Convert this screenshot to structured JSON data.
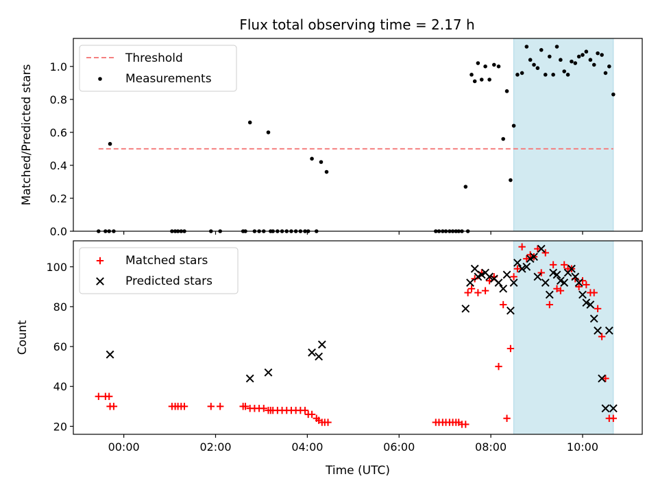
{
  "title": "Flux total observing time = 2.17 h",
  "colors": {
    "threshold": "#f47f7f",
    "measurement": "#000000",
    "matched": "#ff0000",
    "predicted": "#000000",
    "highlight": "#add8e6"
  },
  "chart_data": [
    {
      "type": "scatter",
      "id": "ratio",
      "ylabel": "Matched/Predicted stars",
      "xlim": [
        -1.1,
        11.3
      ],
      "ylim": [
        0,
        1.17
      ],
      "yticks": [
        0.0,
        0.2,
        0.4,
        0.6,
        0.8,
        1.0
      ],
      "ytick_labels": [
        "0.0",
        "0.2",
        "0.4",
        "0.6",
        "0.8",
        "1.0"
      ],
      "highlight_span": [
        8.5,
        10.67
      ],
      "threshold": {
        "label": "Threshold",
        "value": 0.5,
        "x_range": [
          -0.55,
          10.67
        ]
      },
      "measurements": {
        "label": "Measurements",
        "x": [
          -0.55,
          -0.4,
          -0.32,
          -0.22,
          -0.3,
          1.05,
          1.12,
          1.18,
          1.25,
          1.32,
          1.9,
          2.1,
          2.6,
          2.65,
          2.75,
          2.85,
          2.95,
          3.05,
          3.15,
          3.2,
          3.25,
          3.35,
          3.45,
          3.55,
          3.65,
          3.75,
          3.85,
          3.95,
          4.02,
          4.1,
          4.2,
          4.3,
          4.42,
          6.8,
          6.87,
          6.95,
          7.02,
          7.1,
          7.17,
          7.24,
          7.3,
          7.37,
          7.45,
          7.5,
          7.58,
          7.65,
          7.72,
          7.8,
          7.88,
          7.97,
          8.07,
          8.17,
          8.27,
          8.35,
          8.43,
          8.5,
          8.58,
          8.68,
          8.78,
          8.86,
          8.94,
          9.02,
          9.1,
          9.19,
          9.28,
          9.36,
          9.44,
          9.52,
          9.6,
          9.68,
          9.76,
          9.84,
          9.92,
          10.0,
          10.08,
          10.17,
          10.25,
          10.33,
          10.42,
          10.5,
          10.58,
          10.67
        ],
        "y": [
          0.0,
          0.0,
          0.0,
          0.0,
          0.53,
          0.0,
          0.0,
          0.0,
          0.0,
          0.0,
          0.0,
          0.0,
          0.0,
          0.0,
          0.66,
          0.0,
          0.0,
          0.0,
          0.6,
          0.0,
          0.0,
          0.0,
          0.0,
          0.0,
          0.0,
          0.0,
          0.0,
          0.0,
          0.0,
          0.44,
          0.0,
          0.42,
          0.36,
          0.0,
          0.0,
          0.0,
          0.0,
          0.0,
          0.0,
          0.0,
          0.0,
          0.0,
          0.27,
          0.0,
          0.95,
          0.91,
          1.02,
          0.92,
          1.0,
          0.92,
          1.01,
          1.0,
          0.56,
          0.85,
          0.31,
          0.64,
          0.95,
          0.96,
          1.12,
          1.04,
          1.01,
          0.99,
          1.1,
          0.95,
          1.06,
          0.95,
          1.12,
          1.04,
          0.97,
          0.95,
          1.03,
          1.02,
          1.06,
          1.07,
          1.09,
          1.04,
          1.01,
          1.08,
          1.07,
          0.96,
          1.0,
          0.83
        ]
      }
    },
    {
      "type": "scatter",
      "id": "counts",
      "ylabel": "Count",
      "xlabel": "Time (UTC)",
      "xlim": [
        -1.1,
        11.3
      ],
      "ylim": [
        16,
        113
      ],
      "yticks": [
        20,
        40,
        60,
        80,
        100
      ],
      "ytick_labels": [
        "20",
        "40",
        "60",
        "80",
        "100"
      ],
      "xticks": [
        0,
        2,
        4,
        6,
        8,
        10
      ],
      "xtick_labels": [
        "00:00",
        "02:00",
        "04:00",
        "06:00",
        "08:00",
        "10:00"
      ],
      "highlight_span": [
        8.5,
        10.67
      ],
      "series": [
        {
          "name": "Matched stars",
          "marker": "plus",
          "x": [
            -0.55,
            -0.4,
            -0.32,
            -0.3,
            -0.22,
            1.05,
            1.12,
            1.18,
            1.25,
            1.32,
            1.9,
            2.1,
            2.6,
            2.65,
            2.75,
            2.85,
            2.95,
            3.05,
            3.15,
            3.2,
            3.25,
            3.35,
            3.45,
            3.55,
            3.65,
            3.75,
            3.85,
            3.95,
            4.02,
            4.1,
            4.2,
            4.25,
            4.32,
            4.38,
            4.45,
            6.8,
            6.87,
            6.95,
            7.02,
            7.1,
            7.17,
            7.24,
            7.3,
            7.37,
            7.45,
            7.5,
            7.58,
            7.65,
            7.72,
            7.8,
            7.88,
            7.97,
            8.07,
            8.17,
            8.27,
            8.35,
            8.43,
            8.5,
            8.58,
            8.68,
            8.78,
            8.86,
            8.94,
            9.02,
            9.1,
            9.19,
            9.28,
            9.36,
            9.44,
            9.52,
            9.6,
            9.68,
            9.76,
            9.84,
            9.92,
            10.0,
            10.08,
            10.17,
            10.25,
            10.33,
            10.42,
            10.5,
            10.58,
            10.67
          ],
          "y": [
            35,
            35,
            35,
            30,
            30,
            30,
            30,
            30,
            30,
            30,
            30,
            30,
            30,
            30,
            29,
            29,
            29,
            29,
            28,
            28,
            28,
            28,
            28,
            28,
            28,
            28,
            28,
            28,
            26,
            26,
            24,
            23,
            22,
            22,
            22,
            22,
            22,
            22,
            22,
            22,
            22,
            22,
            22,
            21,
            21,
            87,
            89,
            94,
            87,
            97,
            88,
            93,
            95,
            50,
            81,
            24,
            59,
            95,
            99,
            110,
            104,
            106,
            105,
            109,
            97,
            107,
            81,
            101,
            89,
            88,
            101,
            99,
            99,
            94,
            90,
            93,
            91,
            87,
            87,
            79,
            65,
            44,
            24,
            24
          ]
        },
        {
          "name": "Predicted stars",
          "marker": "x",
          "x": [
            -0.3,
            2.75,
            3.15,
            4.1,
            4.25,
            4.32,
            7.45,
            7.55,
            7.65,
            7.72,
            7.8,
            7.88,
            7.97,
            8.07,
            8.17,
            8.27,
            8.35,
            8.43,
            8.5,
            8.58,
            8.68,
            8.78,
            8.86,
            8.94,
            9.02,
            9.1,
            9.19,
            9.28,
            9.36,
            9.44,
            9.52,
            9.6,
            9.68,
            9.76,
            9.84,
            9.92,
            10.0,
            10.08,
            10.17,
            10.25,
            10.33,
            10.42,
            10.5,
            10.58,
            10.67
          ],
          "y": [
            56,
            44,
            47,
            57,
            55,
            61,
            79,
            92,
            99,
            95,
            96,
            97,
            95,
            94,
            92,
            89,
            96,
            78,
            92,
            102,
            99,
            100,
            104,
            105,
            95,
            109,
            92,
            86,
            97,
            96,
            93,
            92,
            97,
            99,
            95,
            92,
            86,
            82,
            81,
            74,
            68,
            44,
            29,
            68,
            29
          ]
        }
      ]
    }
  ]
}
